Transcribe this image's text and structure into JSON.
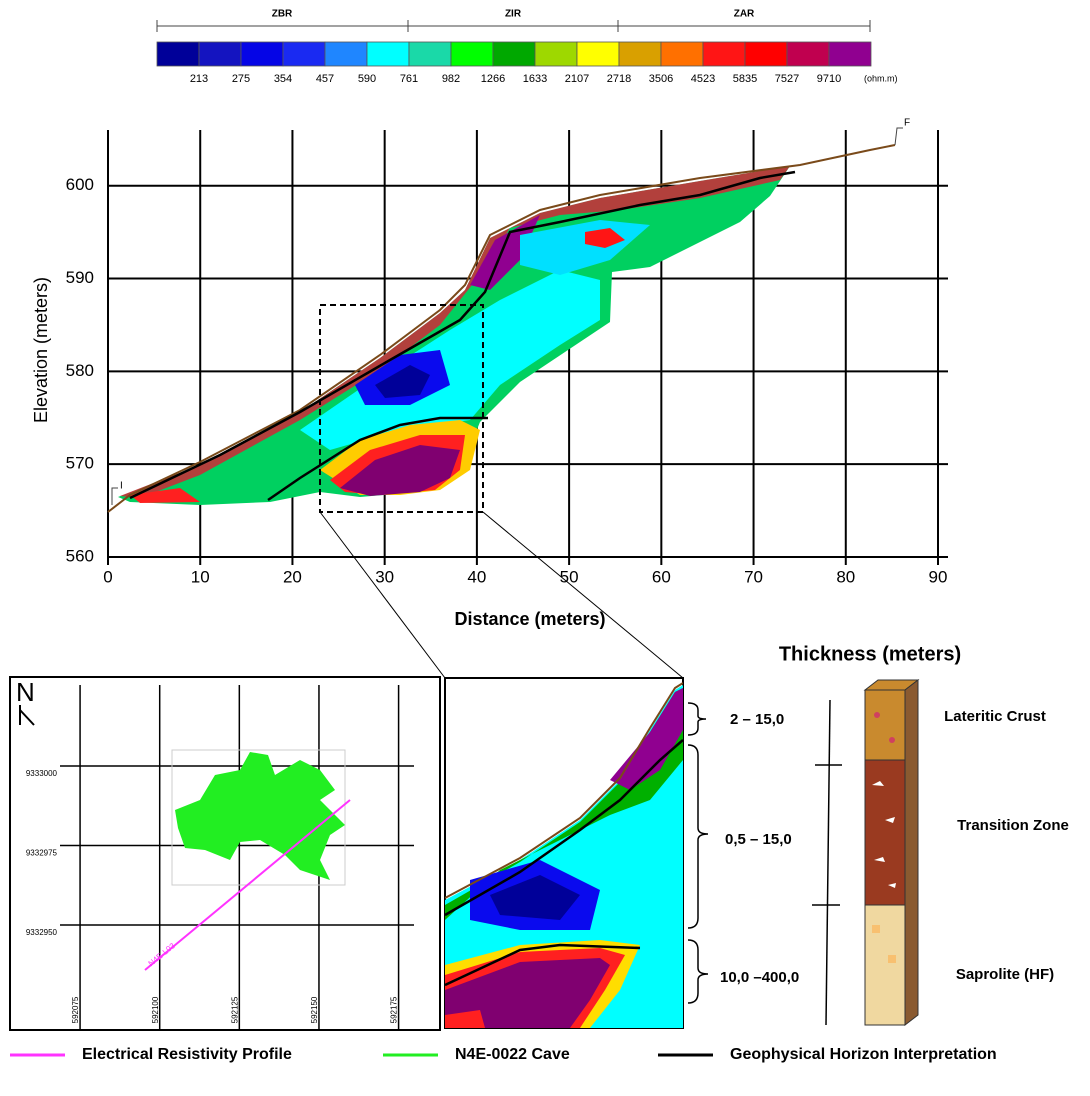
{
  "colorbar": {
    "zones": [
      "ZBR",
      "ZIR",
      "ZAR"
    ],
    "colors": [
      "#000099",
      "#1414c0",
      "#0505e6",
      "#1a2af2",
      "#1f86ff",
      "#00ffff",
      "#1ad9a8",
      "#00ff00",
      "#00a800",
      "#9ed800",
      "#ffff00",
      "#d9a000",
      "#ff7000",
      "#ff1515",
      "#ff0000",
      "#c0004f",
      "#900090"
    ],
    "labels": [
      213,
      275,
      354,
      457,
      590,
      761,
      982,
      1266,
      1633,
      2107,
      2718,
      3506,
      4523,
      5835,
      7527,
      9710
    ],
    "unit": "(ohm.m)"
  },
  "chart_data": {
    "type": "section",
    "xlabel": "Distance (meters)",
    "ylabel": "Elevation (meters)",
    "xlim": [
      0,
      90
    ],
    "ylim": [
      560,
      606
    ],
    "xticks": [
      0,
      10,
      20,
      30,
      40,
      50,
      60,
      70,
      80,
      90
    ],
    "yticks": [
      560,
      570,
      580,
      590,
      600
    ],
    "grid": true,
    "start_label": "I",
    "end_label": "F"
  },
  "map": {
    "north": "N",
    "xlim": [
      592053,
      592188
    ],
    "ylim": [
      9332917,
      9333028
    ],
    "xticks": [
      592075,
      592100,
      592125,
      592150,
      592175
    ],
    "yticks": [
      9333000,
      9332975,
      9332950
    ],
    "profile_label": "N4E-L03"
  },
  "column": {
    "title": "Thickness (meters)",
    "layers": [
      {
        "thickness": "2 – 15,0",
        "name": "Lateritic Crust"
      },
      {
        "thickness": "0,5 – 15,0",
        "name": "Transition Zone"
      },
      {
        "thickness": "10,0 –400,0",
        "name": "Saprolite (HF)"
      }
    ]
  },
  "legend": [
    {
      "label": "Electrical Resistivity Profile",
      "color": "#ff33ff"
    },
    {
      "label": "N4E-0022 Cave",
      "color": "#22ee22"
    },
    {
      "label": "Geophysical Horizon Interpretation",
      "color": "#000000"
    }
  ]
}
